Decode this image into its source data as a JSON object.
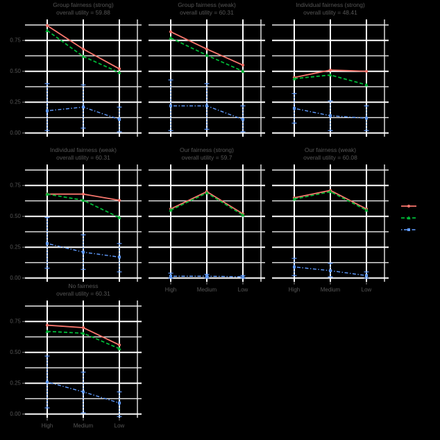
{
  "page": {
    "background": "#000000",
    "text_color": "#565656"
  },
  "colors": {
    "red": "#F8766D",
    "green": "#00BA38",
    "blue": "#619CFF",
    "grid_major": "#FFFFFF",
    "grid_minor": "#ECECEC",
    "tick": "#8A8A8A"
  },
  "axes": {
    "x_tick_labels": [
      "High",
      "Medium",
      "Low"
    ],
    "y_tick_labels": [
      "0.75",
      "0.50",
      "0.25",
      "0.00"
    ],
    "y_ticks": [
      0.75,
      0.5,
      0.25,
      0.0
    ]
  },
  "legend": {
    "items": [
      {
        "series": "red",
        "label": ""
      },
      {
        "series": "green",
        "label": ""
      },
      {
        "series": "blue",
        "label": ""
      }
    ]
  },
  "chart_data": [
    {
      "type": "line",
      "title": "Group fairness (strong)",
      "subtitle": "overall utility = 59.88",
      "categories": [
        "High",
        "Medium",
        "Low"
      ],
      "ylim": [
        -0.03,
        0.92
      ],
      "yticks": [
        0,
        0.25,
        0.5,
        0.75
      ],
      "show_y_labels": true,
      "show_x_labels": false,
      "series": [
        {
          "name": "red",
          "values": [
            0.87,
            0.68,
            0.52
          ]
        },
        {
          "name": "green",
          "values": [
            0.83,
            0.62,
            0.49
          ]
        },
        {
          "name": "blue",
          "values": [
            0.18,
            0.21,
            0.11
          ],
          "error_low": [
            0.02,
            0.04,
            0.01
          ],
          "error_high": [
            0.4,
            0.39,
            0.21
          ]
        }
      ]
    },
    {
      "type": "line",
      "title": "Group fairness (weak)",
      "subtitle": "overall utility = 60.31",
      "categories": [
        "High",
        "Medium",
        "Low"
      ],
      "ylim": [
        -0.03,
        0.92
      ],
      "yticks": [
        0,
        0.25,
        0.5,
        0.75
      ],
      "show_y_labels": false,
      "show_x_labels": false,
      "series": [
        {
          "name": "red",
          "values": [
            0.82,
            0.68,
            0.55
          ]
        },
        {
          "name": "green",
          "values": [
            0.77,
            0.63,
            0.5
          ]
        },
        {
          "name": "blue",
          "values": [
            0.22,
            0.22,
            0.11
          ],
          "error_low": [
            0.02,
            0.03,
            0.01
          ],
          "error_high": [
            0.43,
            0.4,
            0.22
          ]
        }
      ]
    },
    {
      "type": "line",
      "title": "Individual fairness (strong)",
      "subtitle": "overall utility = 48.41",
      "categories": [
        "High",
        "Medium",
        "Low"
      ],
      "ylim": [
        -0.03,
        0.92
      ],
      "yticks": [
        0,
        0.25,
        0.5,
        0.75
      ],
      "show_y_labels": false,
      "show_x_labels": false,
      "series": [
        {
          "name": "red",
          "values": [
            0.45,
            0.51,
            0.5
          ]
        },
        {
          "name": "green",
          "values": [
            0.44,
            0.47,
            0.39
          ]
        },
        {
          "name": "blue",
          "values": [
            0.2,
            0.14,
            0.12
          ],
          "error_low": [
            0.08,
            0.02,
            0.02
          ],
          "error_high": [
            0.32,
            0.26,
            0.22
          ]
        }
      ]
    },
    {
      "type": "line",
      "title": "Individual fairness (weak)",
      "subtitle": "overall utility = 60.31",
      "categories": [
        "High",
        "Medium",
        "Low"
      ],
      "ylim": [
        -0.03,
        0.92
      ],
      "yticks": [
        0,
        0.25,
        0.5,
        0.75
      ],
      "show_y_labels": true,
      "show_x_labels": false,
      "series": [
        {
          "name": "red",
          "values": [
            0.68,
            0.68,
            0.63
          ]
        },
        {
          "name": "green",
          "values": [
            0.68,
            0.63,
            0.49
          ]
        },
        {
          "name": "blue",
          "values": [
            0.28,
            0.21,
            0.17
          ],
          "error_low": [
            0.08,
            0.07,
            0.05
          ],
          "error_high": [
            0.49,
            0.35,
            0.28
          ]
        }
      ]
    },
    {
      "type": "line",
      "title": "Our fairness (strong)",
      "subtitle": "overall utility = 59.7",
      "categories": [
        "High",
        "Medium",
        "Low"
      ],
      "ylim": [
        -0.03,
        0.92
      ],
      "yticks": [
        0,
        0.25,
        0.5,
        0.75
      ],
      "show_y_labels": false,
      "show_x_labels": true,
      "series": [
        {
          "name": "red",
          "values": [
            0.56,
            0.7,
            0.52
          ]
        },
        {
          "name": "green",
          "values": [
            0.55,
            0.69,
            0.51
          ]
        },
        {
          "name": "blue",
          "values": [
            0.015,
            0.015,
            0.01
          ],
          "error_low": [
            0.0,
            0.0,
            0.0
          ],
          "error_high": [
            0.04,
            0.03,
            0.02
          ]
        }
      ]
    },
    {
      "type": "line",
      "title": "Our fairness (weak)",
      "subtitle": "overall utility = 60.08",
      "categories": [
        "High",
        "Medium",
        "Low"
      ],
      "ylim": [
        -0.03,
        0.92
      ],
      "yticks": [
        0,
        0.25,
        0.5,
        0.75
      ],
      "show_y_labels": false,
      "show_x_labels": true,
      "series": [
        {
          "name": "red",
          "values": [
            0.65,
            0.71,
            0.56
          ]
        },
        {
          "name": "green",
          "values": [
            0.64,
            0.7,
            0.55
          ]
        },
        {
          "name": "blue",
          "values": [
            0.09,
            0.06,
            0.02
          ],
          "error_low": [
            0.02,
            0.01,
            0.0
          ],
          "error_high": [
            0.16,
            0.12,
            0.05
          ]
        }
      ]
    },
    {
      "type": "line",
      "title": "No fairness",
      "subtitle": "overall utility = 60.31",
      "categories": [
        "High",
        "Medium",
        "Low"
      ],
      "ylim": [
        -0.03,
        0.92
      ],
      "yticks": [
        0,
        0.25,
        0.5,
        0.75
      ],
      "show_y_labels": true,
      "show_x_labels": true,
      "series": [
        {
          "name": "red",
          "values": [
            0.72,
            0.7,
            0.56
          ]
        },
        {
          "name": "green",
          "values": [
            0.67,
            0.655,
            0.53
          ]
        },
        {
          "name": "blue",
          "values": [
            0.26,
            0.18,
            0.09
          ],
          "error_low": [
            0.05,
            0.01,
            -0.02
          ],
          "error_high": [
            0.47,
            0.34,
            0.18
          ]
        }
      ]
    }
  ]
}
